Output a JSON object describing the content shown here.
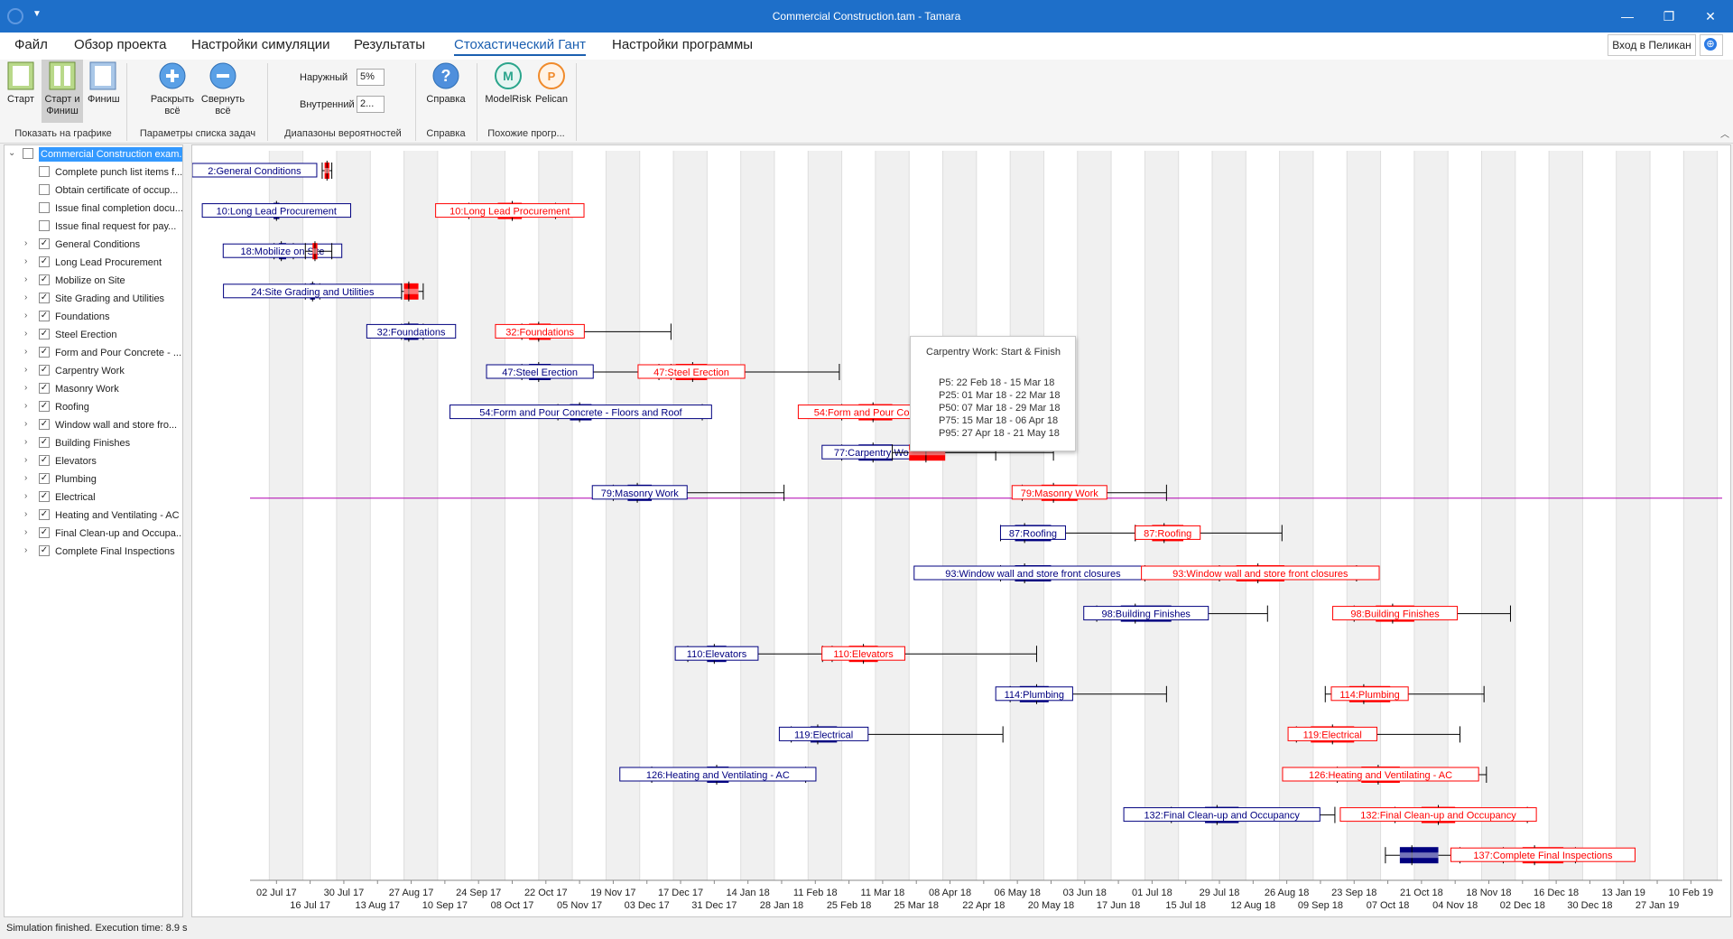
{
  "window": {
    "title": "Commercial Construction.tam - Tamara",
    "minimize": "—",
    "maximize": "❐",
    "close": "✕"
  },
  "menu": [
    "Файл",
    "Обзор проекта",
    "Настройки симуляции",
    "Результаты",
    "Стохастический Гант",
    "Настройки программы"
  ],
  "menu_active": 4,
  "login_button": "Вход в Пеликан",
  "ribbon": {
    "show_on_chart": {
      "start": "Старт",
      "start_finish": "Старт и Финиш",
      "finish": "Финиш",
      "group": "Показать на графике"
    },
    "task_list": {
      "expand": "Раскрыть всё",
      "collapse": "Свернуть всё",
      "group": "Параметры списка задач"
    },
    "ranges": {
      "outer_label": "Наружный",
      "outer_value": "5%",
      "inner_label": "Внутренний",
      "inner_value": "2...",
      "group": "Диапазоны вероятностей"
    },
    "help": {
      "label": "Справка",
      "group": "Справка"
    },
    "similar": {
      "modelrisk": "ModelRisk",
      "pelican": "Pelican",
      "group": "Похожие прогр..."
    }
  },
  "tree": [
    {
      "label": "Commercial Construction exam...",
      "level": 0,
      "expand": "down",
      "checked": false,
      "selected": true
    },
    {
      "label": "Complete punch list items f...",
      "level": 1,
      "expand": "",
      "checked": false
    },
    {
      "label": "Obtain certificate of occup...",
      "level": 1,
      "expand": "",
      "checked": false
    },
    {
      "label": "Issue final completion docu...",
      "level": 1,
      "expand": "",
      "checked": false
    },
    {
      "label": "Issue final request for pay...",
      "level": 1,
      "expand": "",
      "checked": false
    },
    {
      "label": "General Conditions",
      "level": 1,
      "expand": "right",
      "checked": true
    },
    {
      "label": "Long Lead Procurement",
      "level": 1,
      "expand": "right",
      "checked": true
    },
    {
      "label": "Mobilize on Site",
      "level": 1,
      "expand": "right",
      "checked": true
    },
    {
      "label": "Site Grading and Utilities",
      "level": 1,
      "expand": "right",
      "checked": true
    },
    {
      "label": "Foundations",
      "level": 1,
      "expand": "right",
      "checked": true
    },
    {
      "label": "Steel Erection",
      "level": 1,
      "expand": "right",
      "checked": true
    },
    {
      "label": "Form and Pour Concrete - ...",
      "level": 1,
      "expand": "right",
      "checked": true
    },
    {
      "label": "Carpentry Work",
      "level": 1,
      "expand": "right",
      "checked": true
    },
    {
      "label": "Masonry Work",
      "level": 1,
      "expand": "right",
      "checked": true
    },
    {
      "label": "Roofing",
      "level": 1,
      "expand": "right",
      "checked": true
    },
    {
      "label": "Window wall and store fro...",
      "level": 1,
      "expand": "right",
      "checked": true
    },
    {
      "label": "Building Finishes",
      "level": 1,
      "expand": "right",
      "checked": true
    },
    {
      "label": "Elevators",
      "level": 1,
      "expand": "right",
      "checked": true
    },
    {
      "label": "Plumbing",
      "level": 1,
      "expand": "right",
      "checked": true
    },
    {
      "label": "Electrical",
      "level": 1,
      "expand": "right",
      "checked": true
    },
    {
      "label": "Heating and Ventilating - AC",
      "level": 1,
      "expand": "right",
      "checked": true
    },
    {
      "label": "Final Clean-up and Occupa...",
      "level": 1,
      "expand": "right",
      "checked": true
    },
    {
      "label": "Complete Final Inspections",
      "level": 1,
      "expand": "right",
      "checked": true
    }
  ],
  "tooltip": {
    "title": "Carpentry Work: Start & Finish",
    "lines": [
      "P5: 22 Feb 18 - 15 Mar 18",
      "P25: 01 Mar 18 - 22 Mar 18",
      "P50: 07 Mar 18 - 29 Mar 18",
      "P75: 15 Mar 18 - 06 Apr 18",
      "P95: 27 Apr 18 - 21 May 18"
    ]
  },
  "status": "Simulation finished. Execution time: 8.9 s",
  "colors": {
    "start": "#000080",
    "finish": "#ff0000",
    "accent": "#1e6fc9",
    "cursor_line": "#b000b0"
  },
  "chart_data": {
    "type": "stochastic-gantt",
    "x_axis_type": "date",
    "x_range": [
      "2017-06-21",
      "2019-02-23"
    ],
    "week_stripes": true,
    "cursor_row": 8,
    "tick_labels": [
      {
        "date": "2017-07-02",
        "label": "02 Jul 17"
      },
      {
        "date": "2017-07-16",
        "label": "16 Jul 17"
      },
      {
        "date": "2017-07-30",
        "label": "30 Jul 17"
      },
      {
        "date": "2017-08-13",
        "label": "13 Aug 17"
      },
      {
        "date": "2017-08-27",
        "label": "27 Aug 17"
      },
      {
        "date": "2017-09-10",
        "label": "10 Sep 17"
      },
      {
        "date": "2017-09-24",
        "label": "24 Sep 17"
      },
      {
        "date": "2017-10-08",
        "label": "08 Oct 17"
      },
      {
        "date": "2017-10-22",
        "label": "22 Oct 17"
      },
      {
        "date": "2017-11-05",
        "label": "05 Nov 17"
      },
      {
        "date": "2017-11-19",
        "label": "19 Nov 17"
      },
      {
        "date": "2017-12-03",
        "label": "03 Dec 17"
      },
      {
        "date": "2017-12-17",
        "label": "17 Dec 17"
      },
      {
        "date": "2017-12-31",
        "label": "31 Dec 17"
      },
      {
        "date": "2018-01-14",
        "label": "14 Jan 18"
      },
      {
        "date": "2018-01-28",
        "label": "28 Jan 18"
      },
      {
        "date": "2018-02-11",
        "label": "11 Feb 18"
      },
      {
        "date": "2018-02-25",
        "label": "25 Feb 18"
      },
      {
        "date": "2018-03-11",
        "label": "11 Mar 18"
      },
      {
        "date": "2018-03-25",
        "label": "25 Mar 18"
      },
      {
        "date": "2018-04-08",
        "label": "08 Apr 18"
      },
      {
        "date": "2018-04-22",
        "label": "22 Apr 18"
      },
      {
        "date": "2018-05-06",
        "label": "06 May 18"
      },
      {
        "date": "2018-05-20",
        "label": "20 May 18"
      },
      {
        "date": "2018-06-03",
        "label": "03 Jun 18"
      },
      {
        "date": "2018-06-17",
        "label": "17 Jun 18"
      },
      {
        "date": "2018-07-01",
        "label": "01 Jul 18"
      },
      {
        "date": "2018-07-15",
        "label": "15 Jul 18"
      },
      {
        "date": "2018-07-29",
        "label": "29 Jul 18"
      },
      {
        "date": "2018-08-12",
        "label": "12 Aug 18"
      },
      {
        "date": "2018-08-26",
        "label": "26 Aug 18"
      },
      {
        "date": "2018-09-09",
        "label": "09 Sep 18"
      },
      {
        "date": "2018-09-23",
        "label": "23 Sep 18"
      },
      {
        "date": "2018-10-07",
        "label": "07 Oct 18"
      },
      {
        "date": "2018-10-21",
        "label": "21 Oct 18"
      },
      {
        "date": "2018-11-04",
        "label": "04 Nov 18"
      },
      {
        "date": "2018-11-18",
        "label": "18 Nov 18"
      },
      {
        "date": "2018-12-02",
        "label": "02 Dec 18"
      },
      {
        "date": "2018-12-16",
        "label": "16 Dec 18"
      },
      {
        "date": "2018-12-30",
        "label": "30 Dec 18"
      },
      {
        "date": "2019-01-13",
        "label": "13 Jan 19"
      },
      {
        "date": "2019-01-27",
        "label": "27 Jan 19"
      },
      {
        "date": "2019-02-10",
        "label": "10 Feb 19"
      }
    ],
    "tasks": [
      {
        "id": 2,
        "start_label": "2:General Conditions",
        "finish_label": "",
        "start": null,
        "finish": [
          "2017-07-21",
          "2017-07-22",
          "2017-07-23",
          "2017-07-24",
          "2017-07-25"
        ]
      },
      {
        "id": 10,
        "start_label": "10:Long Lead Procurement",
        "finish_label": "10:Long Lead Procurement",
        "start": [
          "2017-07-01",
          "2017-07-01",
          "2017-07-02",
          "2017-07-03",
          "2017-07-03"
        ],
        "finish": [
          "2017-09-20",
          "2017-10-02",
          "2017-10-08",
          "2017-10-12",
          "2017-10-26"
        ]
      },
      {
        "id": 18,
        "start_label": "18:Mobilize on Site",
        "finish_label": "",
        "start": [
          "2017-07-01",
          "2017-07-03",
          "2017-07-04",
          "2017-07-06",
          "2017-07-09"
        ],
        "finish": [
          "2017-07-14",
          "2017-07-17",
          "2017-07-18",
          "2017-07-19",
          "2017-07-25"
        ]
      },
      {
        "id": 24,
        "start_label": "24:Site Grading and Utilities",
        "finish_label": "",
        "start": [
          "2017-07-14",
          "2017-07-16",
          "2017-07-17",
          "2017-07-18",
          "2017-07-20"
        ],
        "finish": [
          "2017-08-23",
          "2017-08-24",
          "2017-08-26",
          "2017-08-30",
          "2017-09-01"
        ]
      },
      {
        "id": 32,
        "start_label": "32:Foundations",
        "finish_label": "32:Foundations",
        "start": [
          "2017-08-23",
          "2017-08-24",
          "2017-08-26",
          "2017-08-30",
          "2017-09-01"
        ],
        "finish": [
          "2017-10-12",
          "2017-10-15",
          "2017-10-19",
          "2017-10-24",
          "2017-12-13"
        ]
      },
      {
        "id": 47,
        "start_label": "47:Steel Erection",
        "finish_label": "47:Steel Erection",
        "start": [
          "2017-10-12",
          "2017-10-15",
          "2017-10-19",
          "2017-10-24",
          "2017-12-13"
        ],
        "finish": [
          "2017-12-08",
          "2017-12-15",
          "2017-12-22",
          "2017-12-28",
          "2018-02-21"
        ]
      },
      {
        "id": 54,
        "start_label": "54:Form and Pour Concrete - Floors and Roof",
        "finish_label": "54:Form and Pour Concrete",
        "start": [
          "2017-10-27",
          "2017-11-01",
          "2017-11-05",
          "2017-11-10",
          "2017-12-26"
        ],
        "finish": [
          "2018-02-22",
          "2018-03-01",
          "2018-03-07",
          "2018-03-15",
          "2018-04-27"
        ]
      },
      {
        "id": 77,
        "start_label": "77:Carpentry Work",
        "finish_label": "",
        "start": [
          "2018-02-22",
          "2018-03-01",
          "2018-03-07",
          "2018-03-15",
          "2018-04-27"
        ],
        "finish": [
          "2018-03-15",
          "2018-03-22",
          "2018-03-29",
          "2018-04-06",
          "2018-05-21"
        ]
      },
      {
        "id": 79,
        "start_label": "79:Masonry Work",
        "finish_label": "79:Masonry Work",
        "start": [
          "2017-11-19",
          "2017-11-25",
          "2017-11-29",
          "2017-12-05",
          "2018-01-29"
        ],
        "finish": [
          "2018-05-08",
          "2018-05-16",
          "2018-05-21",
          "2018-05-31",
          "2018-07-07"
        ]
      },
      {
        "id": 87,
        "start_label": "87:Roofing",
        "finish_label": "87:Roofing",
        "start": [
          "2018-04-29",
          "2018-05-05",
          "2018-05-09",
          "2018-05-20",
          "2018-06-24"
        ],
        "finish": [
          "2018-06-24",
          "2018-07-01",
          "2018-07-06",
          "2018-07-14",
          "2018-08-24"
        ]
      },
      {
        "id": 93,
        "start_label": "93:Window wall and store front closures",
        "finish_label": "93:Window wall and store front closures",
        "start": [
          "2018-04-29",
          "2018-05-05",
          "2018-05-09",
          "2018-05-20",
          "2018-06-28"
        ],
        "finish": [
          "2018-07-29",
          "2018-08-05",
          "2018-08-14",
          "2018-08-25",
          "2018-09-24"
        ]
      },
      {
        "id": 98,
        "start_label": "98:Building Finishes",
        "finish_label": "98:Building Finishes",
        "start": [
          "2018-06-08",
          "2018-06-18",
          "2018-06-24",
          "2018-07-09",
          "2018-08-18"
        ],
        "finish": [
          "2018-09-23",
          "2018-10-02",
          "2018-10-09",
          "2018-10-18",
          "2018-11-27"
        ]
      },
      {
        "id": 110,
        "start_label": "110:Elevators",
        "finish_label": "110:Elevators",
        "start": [
          "2017-12-20",
          "2017-12-28",
          "2017-12-31",
          "2018-01-05",
          "2018-02-14"
        ],
        "finish": [
          "2018-02-18",
          "2018-02-25",
          "2018-03-03",
          "2018-03-09",
          "2018-05-14"
        ]
      },
      {
        "id": 114,
        "start_label": "114:Plumbing",
        "finish_label": "114:Plumbing",
        "start": [
          "2018-05-03",
          "2018-05-07",
          "2018-05-14",
          "2018-05-19",
          "2018-07-07"
        ],
        "finish": [
          "2018-09-11",
          "2018-09-21",
          "2018-09-27",
          "2018-10-08",
          "2018-11-16"
        ]
      },
      {
        "id": 119,
        "start_label": "119:Electrical",
        "finish_label": "119:Electrical",
        "start": [
          "2018-02-01",
          "2018-02-09",
          "2018-02-12",
          "2018-02-20",
          "2018-04-30"
        ],
        "finish": [
          "2018-08-30",
          "2018-09-05",
          "2018-09-14",
          "2018-09-23",
          "2018-11-06"
        ]
      },
      {
        "id": 126,
        "start_label": "126:Heating and Ventilating - AC",
        "finish_label": "126:Heating and Ventilating - AC",
        "start": [
          "2017-12-05",
          "2017-12-28",
          "2018-01-01",
          "2018-01-06",
          "2018-02-07"
        ],
        "finish": [
          "2018-09-16",
          "2018-09-26",
          "2018-10-03",
          "2018-10-12",
          "2018-11-17"
        ]
      },
      {
        "id": 132,
        "start_label": "132:Final Clean-up and Occupancy",
        "finish_label": "132:Final Clean-up and Occupancy",
        "start": [
          "2018-07-09",
          "2018-07-23",
          "2018-07-28",
          "2018-08-06",
          "2018-09-15"
        ],
        "finish": [
          "2018-10-10",
          "2018-10-21",
          "2018-10-28",
          "2018-11-04",
          "2018-12-04"
        ]
      },
      {
        "id": 137,
        "start_label": "",
        "finish_label": "137:Complete Final Inspections",
        "start": [
          "2018-10-06",
          "2018-10-12",
          "2018-10-17",
          "2018-10-28",
          "2018-11-06"
        ],
        "finish": [
          "2018-11-24",
          "2018-12-02",
          "2018-12-07",
          "2018-12-19",
          "2018-12-24"
        ]
      }
    ]
  }
}
